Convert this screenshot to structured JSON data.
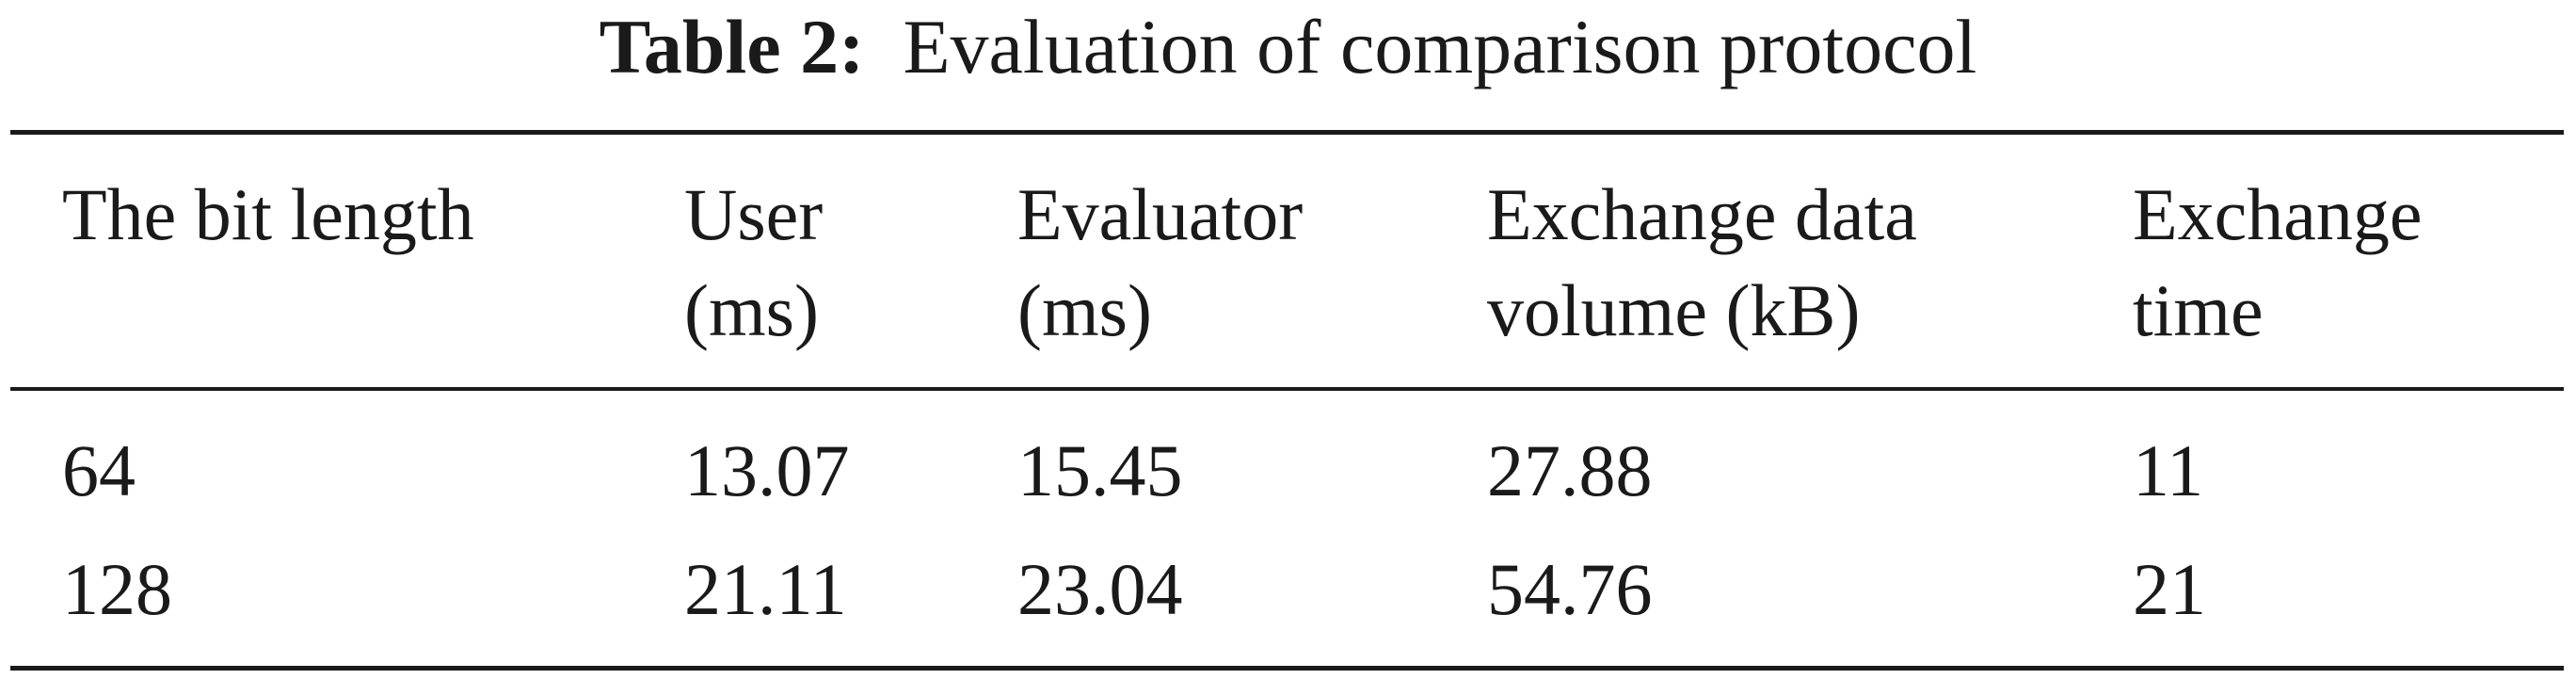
{
  "table": {
    "caption": {
      "label": "Table 2:",
      "text": "Evaluation of comparison protocol"
    },
    "headers": [
      {
        "line1": "The bit length",
        "line2": ""
      },
      {
        "line1": "User",
        "line2": "(ms)"
      },
      {
        "line1": "Evaluator",
        "line2": "(ms)"
      },
      {
        "line1": "Exchange data",
        "line2": "volume (kB)"
      },
      {
        "line1": "Exchange",
        "line2": "time"
      }
    ],
    "rows": [
      [
        "64",
        "13.07",
        "15.45",
        "27.88",
        "11"
      ],
      [
        "128",
        "21.11",
        "23.04",
        "54.76",
        "21"
      ]
    ]
  }
}
